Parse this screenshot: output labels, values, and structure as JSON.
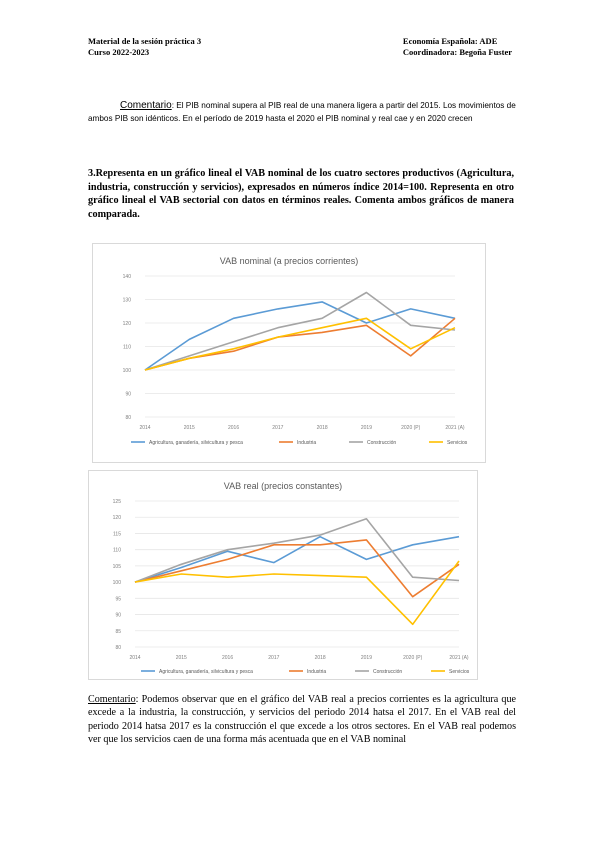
{
  "header": {
    "left_line1": "Material de la sesión práctica 3",
    "left_line2": "Curso 2022-2023",
    "right_line1": "Economía Española: ADE",
    "right_line2": "Coordinadora: Begoña Fuster"
  },
  "comment1": {
    "label": "Comentario",
    "text": ": El PIB nominal supera al PIB real de una manera ligera a partir del 2015. Los movimientos de ambos PIB son idénticos. En el período de 2019 hasta el 2020 el PIB nominal y real cae y en 2020 crecen"
  },
  "question3": "3.Representa en un gráfico lineal el VAB nominal de los cuatro sectores productivos (Agricultura, industria, construcción y servicios), expresados en números índice 2014=100. Representa en otro gráfico lineal el VAB sectorial con datos en términos reales. Comenta ambos gráficos de manera comparada.",
  "colors": {
    "agri": "#5b9bd5",
    "industria": "#ed7d31",
    "construccion": "#a5a5a5",
    "servicios": "#ffc000"
  },
  "chart_data": [
    {
      "type": "line",
      "title": "VAB nominal (a precios corrientes)",
      "categories": [
        "2014",
        "2015",
        "2016",
        "2017",
        "2018",
        "2019",
        "2020 (P)",
        "2021 (A)"
      ],
      "yticks": [
        "80",
        "90",
        "100",
        "110",
        "120",
        "130",
        "140"
      ],
      "ylim": [
        80,
        140
      ],
      "series": [
        {
          "name": "Agricultura, ganadería, silvicultura y pesca",
          "color": "#5b9bd5",
          "values": [
            100,
            113,
            122,
            126,
            129,
            120,
            126,
            122
          ]
        },
        {
          "name": "Industria",
          "color": "#ed7d31",
          "values": [
            100,
            105,
            108,
            114,
            116,
            119,
            106,
            122
          ]
        },
        {
          "name": "Construcción",
          "color": "#a5a5a5",
          "values": [
            100,
            106,
            112,
            118,
            122,
            133,
            119,
            117
          ]
        },
        {
          "name": "Servicios",
          "color": "#ffc000",
          "values": [
            100,
            105,
            109,
            114,
            118,
            122,
            109,
            118
          ]
        }
      ]
    },
    {
      "type": "line",
      "title": "VAB real (precios constantes)",
      "categories": [
        "2014",
        "2015",
        "2016",
        "2017",
        "2018",
        "2019",
        "2020 (P)",
        "2021 (A)"
      ],
      "yticks": [
        "80",
        "85",
        "90",
        "95",
        "100",
        "105",
        "110",
        "115",
        "120",
        "125"
      ],
      "ylim": [
        80,
        125
      ],
      "series": [
        {
          "name": "Agricultura, ganadería, silvicultura y pesca",
          "color": "#5b9bd5",
          "values": [
            100,
            104.5,
            109.5,
            106,
            114,
            107,
            111.5,
            114
          ]
        },
        {
          "name": "Industria",
          "color": "#ed7d31",
          "values": [
            100,
            103.5,
            107,
            111.5,
            111.5,
            113,
            95.5,
            105.5
          ]
        },
        {
          "name": "Construcción",
          "color": "#a5a5a5",
          "values": [
            100,
            105.5,
            110,
            112,
            114.5,
            119.5,
            101.5,
            100.5
          ]
        },
        {
          "name": "Servicios",
          "color": "#ffc000",
          "values": [
            100,
            102.5,
            101.5,
            102.5,
            102,
            101.5,
            87,
            106.5
          ]
        }
      ]
    }
  ],
  "comment2": {
    "label": "Comentario",
    "text": ": Podemos observar que en el gráfico del VAB real a precios corrientes es la agricultura que excede a la industria, la construcción, y servicios del periodo 2014 hatsa el 2017. En el VAB real del periodo 2014 hatsa 2017 es la construcción el que excede a los otros sectores. En el VAB real podemos ver que los servicios caen de una forma más acentuada que en el VAB nominal"
  }
}
